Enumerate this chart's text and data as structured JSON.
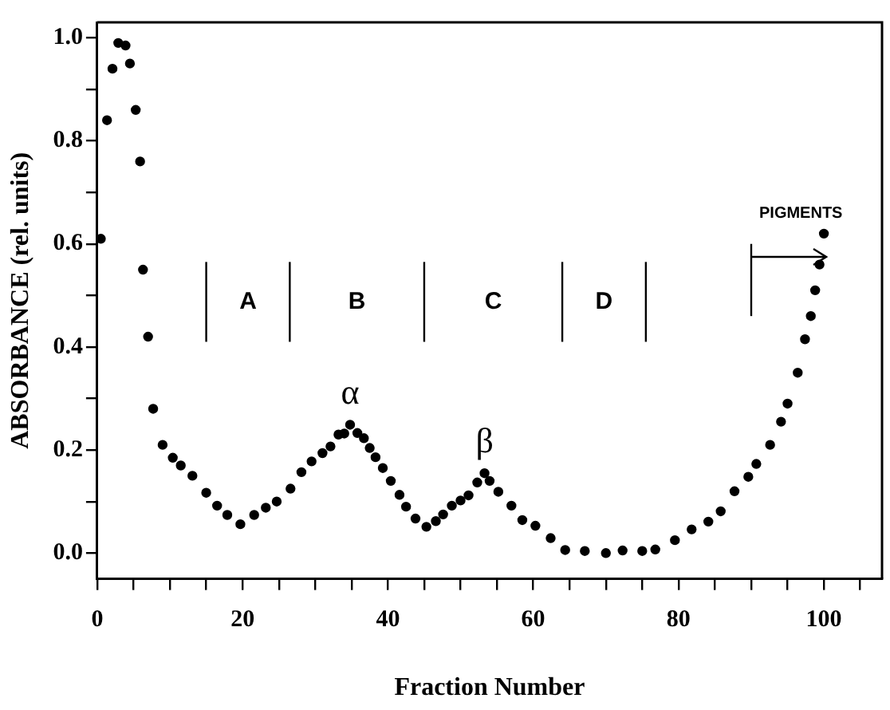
{
  "chart_data": {
    "type": "scatter",
    "xlabel": "Fraction Number",
    "ylabel": "ABSORBANCE (rel. units)",
    "series": [
      {
        "color": "#000000",
        "x": [
          0.5,
          1.35,
          2.1,
          2.9,
          3.9,
          4.5,
          5.3,
          5.9,
          6.3,
          7,
          7.7,
          9,
          10.4,
          11.5,
          13.1,
          15,
          16.5,
          17.9,
          19.7,
          21.6,
          23.2,
          24.7,
          26.6,
          28.1,
          29.5,
          31,
          32.1,
          33.2,
          34,
          34.8,
          35.8,
          36.7,
          37.5,
          38.3,
          39.3,
          40.4,
          41.6,
          42.5,
          43.8,
          45.3,
          46.6,
          47.6,
          48.8,
          50,
          51.1,
          52.3,
          53.3,
          54,
          55.2,
          57,
          58.5,
          60.3,
          62.4,
          64.4,
          67.1,
          70,
          72.3,
          75,
          76.8,
          79.5,
          81.8,
          84.1,
          85.8,
          87.7,
          89.6,
          90.7,
          92.6,
          94.1,
          95,
          96.4,
          97.4,
          98.2,
          98.8,
          99.4,
          100
        ],
        "values": [
          0.61,
          0.84,
          0.94,
          0.99,
          0.985,
          0.95,
          0.86,
          0.76,
          0.55,
          0.42,
          0.28,
          0.21,
          0.185,
          0.17,
          0.15,
          0.117,
          0.092,
          0.074,
          0.056,
          0.074,
          0.088,
          0.1,
          0.125,
          0.157,
          0.178,
          0.194,
          0.207,
          0.23,
          0.232,
          0.249,
          0.233,
          0.223,
          0.204,
          0.186,
          0.165,
          0.14,
          0.113,
          0.09,
          0.067,
          0.051,
          0.062,
          0.075,
          0.092,
          0.102,
          0.112,
          0.137,
          0.155,
          0.14,
          0.119,
          0.092,
          0.064,
          0.053,
          0.029,
          0.006,
          0.004,
          0,
          0.005,
          0.004,
          0.007,
          0.025,
          0.046,
          0.061,
          0.081,
          0.12,
          0.148,
          0.173,
          0.21,
          0.255,
          0.29,
          0.35,
          0.415,
          0.46,
          0.51,
          0.56,
          0.62
        ]
      }
    ],
    "marker": "circle",
    "legend": false,
    "grid": false,
    "xlim": [
      0,
      108
    ],
    "xticks": [
      0,
      {
        "value": 5,
        "label": null
      },
      {
        "value": 10,
        "label": null
      },
      {
        "value": 15,
        "label": null
      },
      20,
      {
        "value": 25,
        "label": null
      },
      {
        "value": 30,
        "label": null
      },
      {
        "value": 35,
        "label": null
      },
      40,
      {
        "value": 45,
        "label": null
      },
      {
        "value": 50,
        "label": null
      },
      {
        "value": 55,
        "label": null
      },
      60,
      {
        "value": 65,
        "label": null
      },
      {
        "value": 70,
        "label": null
      },
      {
        "value": 75,
        "label": null
      },
      80,
      {
        "value": 85,
        "label": null
      },
      {
        "value": 90,
        "label": null
      },
      {
        "value": 95,
        "label": null
      },
      100,
      {
        "value": 105,
        "label": null
      }
    ],
    "ylim": [
      -0.05,
      1.03
    ],
    "yticks": [
      {
        "value": 0,
        "label": "0.0"
      },
      {
        "value": 0.1,
        "label": null
      },
      {
        "value": 0.2,
        "label": "0.2"
      },
      {
        "value": 0.3,
        "label": null
      },
      {
        "value": 0.4,
        "label": "0.4"
      },
      {
        "value": 0.5,
        "label": null
      },
      {
        "value": 0.6,
        "label": "0.6"
      },
      {
        "value": 0.7,
        "label": null
      },
      {
        "value": 0.8,
        "label": "0.8"
      },
      {
        "value": 0.9,
        "label": null
      },
      {
        "value": 1,
        "label": "1.0"
      }
    ],
    "ref_lines": [
      {
        "axis": "x",
        "value": 15
      },
      {
        "axis": "x",
        "value": 26.5
      },
      {
        "axis": "x",
        "value": 45
      },
      {
        "axis": "x",
        "value": 64
      },
      {
        "axis": "x",
        "value": 75.5
      },
      {
        "axis": "x",
        "value": 90,
        "label": "PIGMENTS"
      }
    ],
    "annotations": [
      {
        "text": "α",
        "x": 34.8,
        "y": 0.249
      },
      {
        "text": "β",
        "x": 53.3,
        "y": 0.155
      },
      "A",
      "B",
      "C",
      "D"
    ]
  }
}
